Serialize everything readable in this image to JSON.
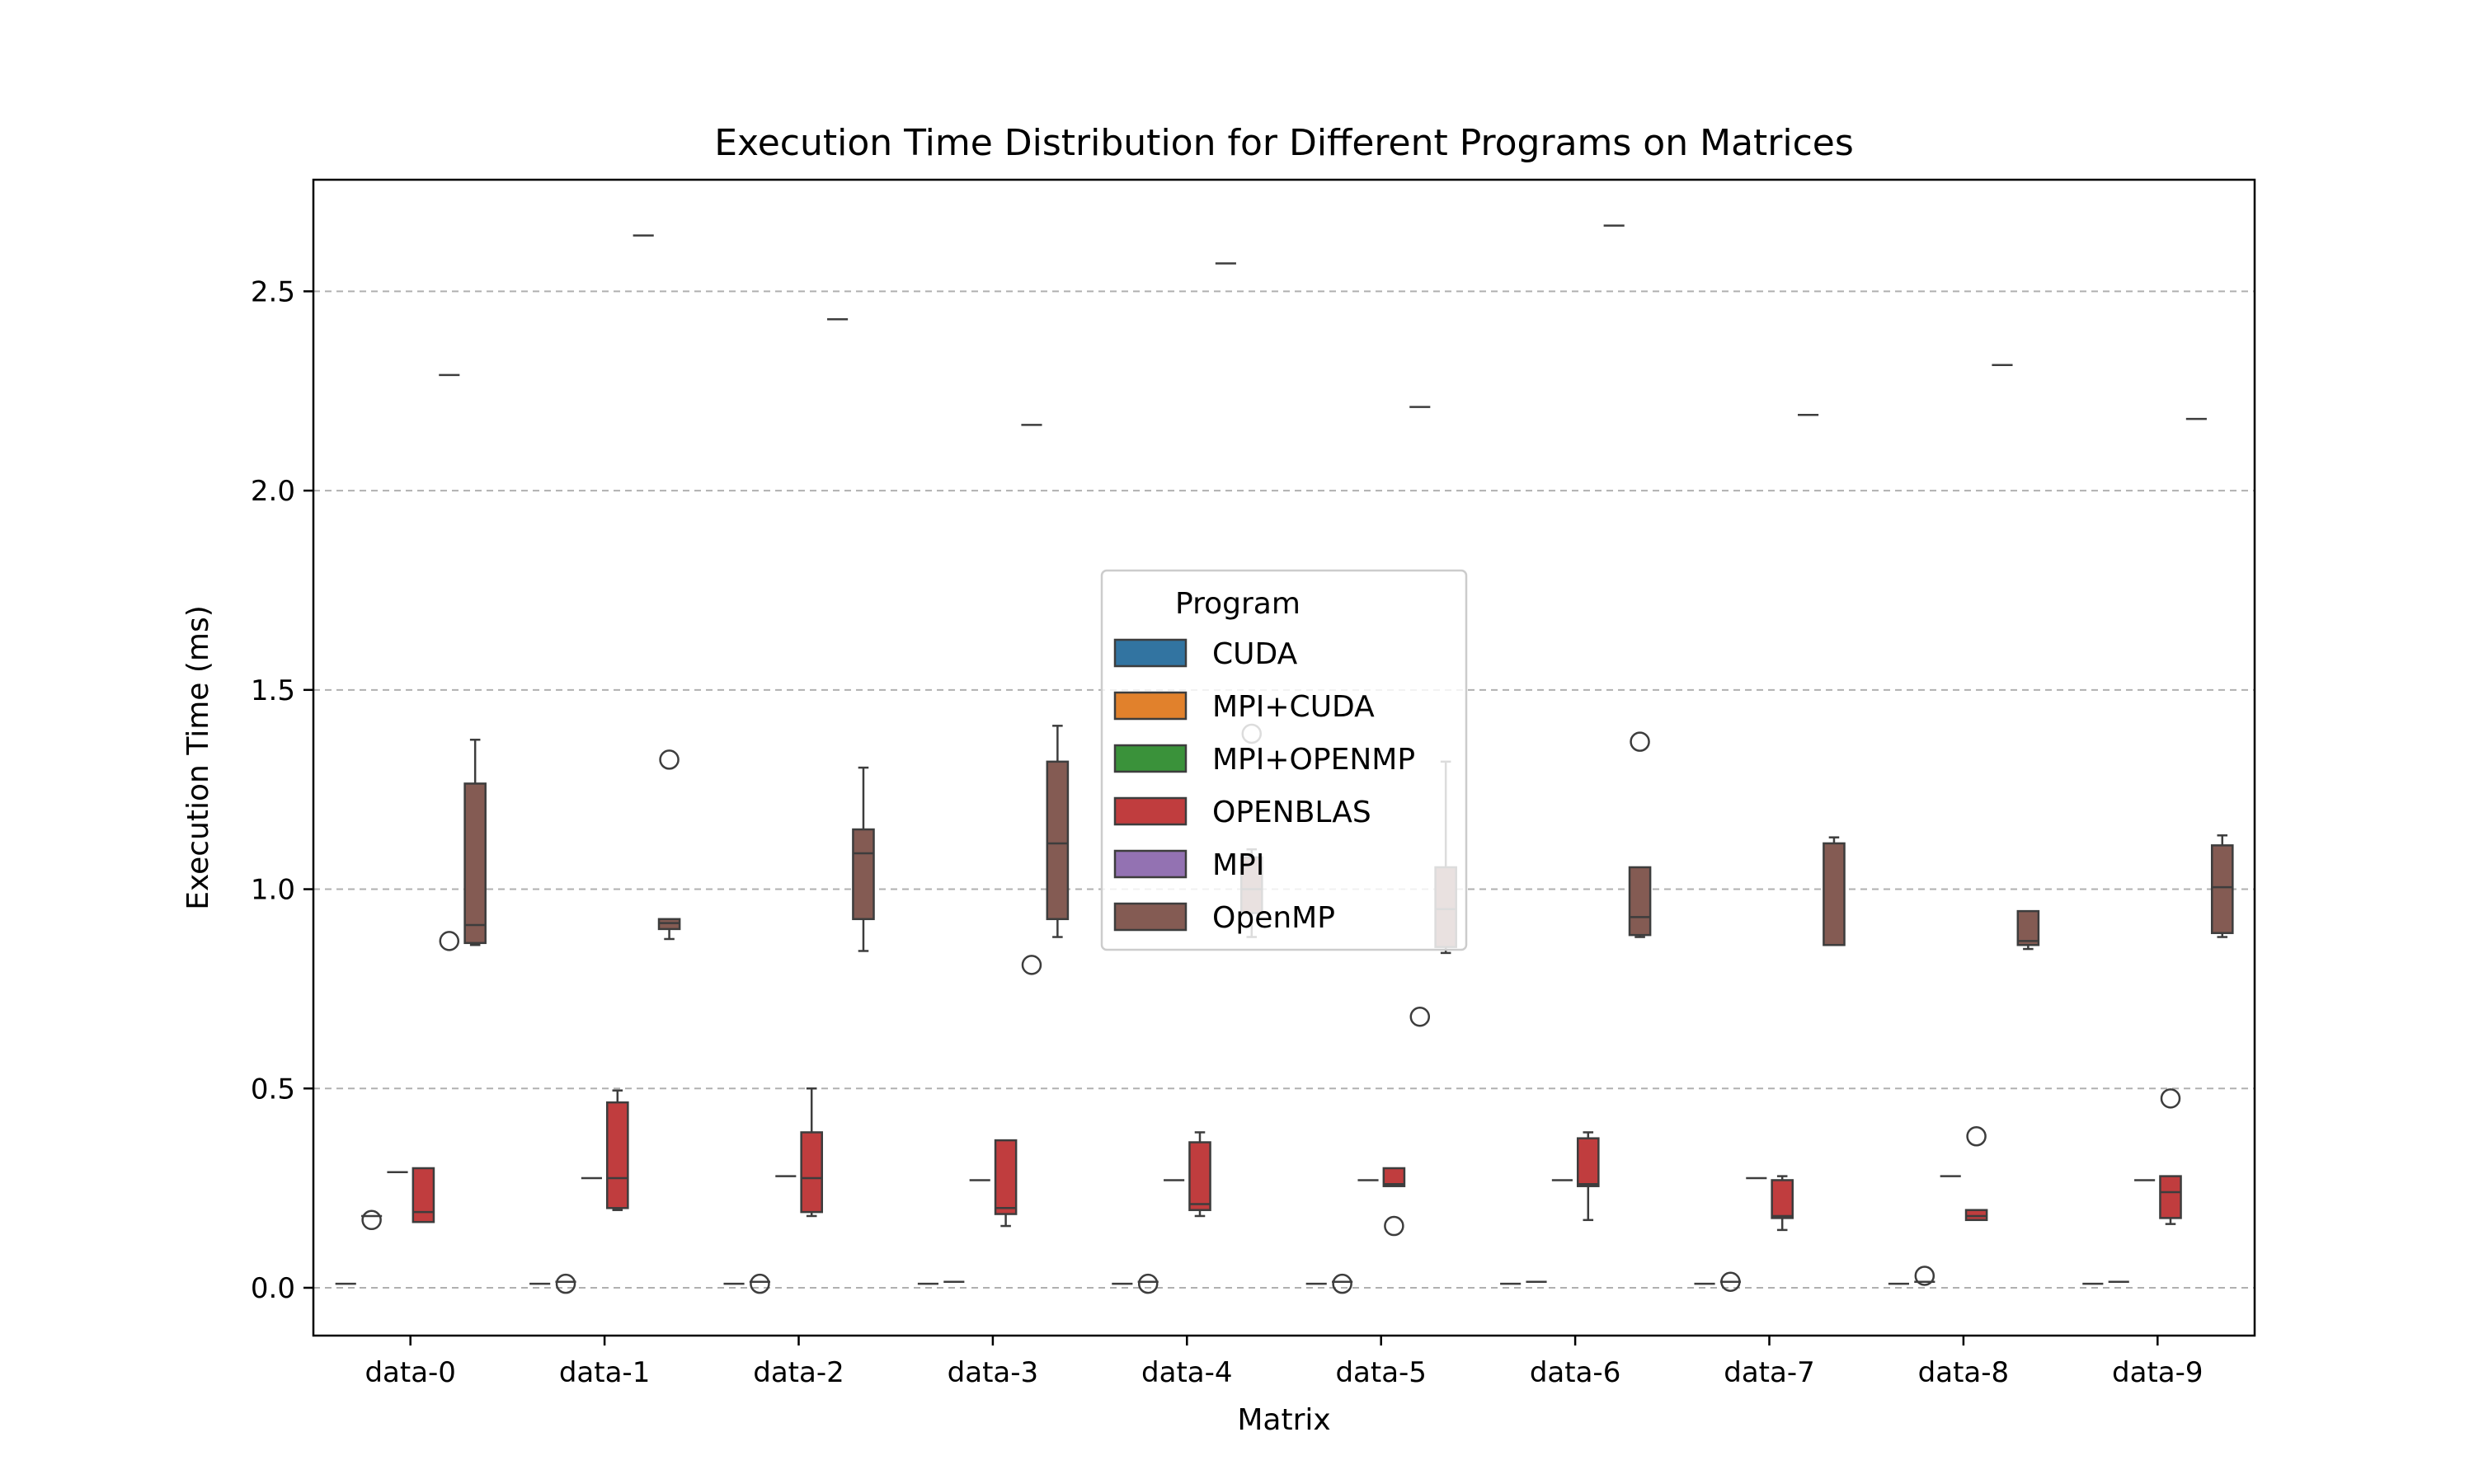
{
  "chart_data": {
    "type": "box",
    "title": "Execution Time Distribution for Different Programs on Matrices",
    "xlabel": "Matrix",
    "ylabel": "Execution Time (ms)",
    "ylim": [
      -0.12,
      2.78
    ],
    "yticks": [
      "0.0",
      "0.5",
      "1.0",
      "1.5",
      "2.0",
      "2.5"
    ],
    "grid": "y-dashed",
    "categories": [
      "data-0",
      "data-1",
      "data-2",
      "data-3",
      "data-4",
      "data-5",
      "data-6",
      "data-7",
      "data-8",
      "data-9"
    ],
    "legend": {
      "title": "Program",
      "placement": "center",
      "entries": [
        {
          "name": "CUDA",
          "color": "#3274a1"
        },
        {
          "name": "MPI+CUDA",
          "color": "#e1812c"
        },
        {
          "name": "MPI+OPENMP",
          "color": "#3a923a"
        },
        {
          "name": "OPENBLAS",
          "color": "#c03d3e"
        },
        {
          "name": "MPI",
          "color": "#9372b2"
        },
        {
          "name": "OpenMP",
          "color": "#845b53"
        }
      ]
    },
    "series": [
      {
        "name": "CUDA",
        "color": "#3274a1",
        "boxes": [
          {
            "min": 0.01,
            "q1": 0.01,
            "median": 0.01,
            "q3": 0.01,
            "max": 0.01,
            "outliers": []
          },
          {
            "min": 0.01,
            "q1": 0.01,
            "median": 0.01,
            "q3": 0.01,
            "max": 0.01,
            "outliers": []
          },
          {
            "min": 0.01,
            "q1": 0.01,
            "median": 0.01,
            "q3": 0.01,
            "max": 0.01,
            "outliers": []
          },
          {
            "min": 0.01,
            "q1": 0.01,
            "median": 0.01,
            "q3": 0.01,
            "max": 0.01,
            "outliers": []
          },
          {
            "min": 0.01,
            "q1": 0.01,
            "median": 0.01,
            "q3": 0.01,
            "max": 0.01,
            "outliers": []
          },
          {
            "min": 0.01,
            "q1": 0.01,
            "median": 0.01,
            "q3": 0.01,
            "max": 0.01,
            "outliers": []
          },
          {
            "min": 0.01,
            "q1": 0.01,
            "median": 0.01,
            "q3": 0.01,
            "max": 0.01,
            "outliers": []
          },
          {
            "min": 0.01,
            "q1": 0.01,
            "median": 0.01,
            "q3": 0.01,
            "max": 0.01,
            "outliers": []
          },
          {
            "min": 0.01,
            "q1": 0.01,
            "median": 0.01,
            "q3": 0.01,
            "max": 0.01,
            "outliers": []
          },
          {
            "min": 0.01,
            "q1": 0.01,
            "median": 0.01,
            "q3": 0.01,
            "max": 0.01,
            "outliers": []
          }
        ]
      },
      {
        "name": "MPI+CUDA",
        "color": "#e1812c",
        "boxes": [
          {
            "min": 0.18,
            "q1": 0.18,
            "median": 0.18,
            "q3": 0.18,
            "max": 0.18,
            "outliers": [
              0.17
            ]
          },
          {
            "min": 0.015,
            "q1": 0.015,
            "median": 0.015,
            "q3": 0.015,
            "max": 0.015,
            "outliers": [
              0.01
            ]
          },
          {
            "min": 0.015,
            "q1": 0.015,
            "median": 0.015,
            "q3": 0.015,
            "max": 0.015,
            "outliers": [
              0.01
            ]
          },
          {
            "min": 0.015,
            "q1": 0.015,
            "median": 0.015,
            "q3": 0.015,
            "max": 0.015,
            "outliers": []
          },
          {
            "min": 0.015,
            "q1": 0.015,
            "median": 0.015,
            "q3": 0.015,
            "max": 0.015,
            "outliers": [
              0.01
            ]
          },
          {
            "min": 0.015,
            "q1": 0.015,
            "median": 0.015,
            "q3": 0.015,
            "max": 0.015,
            "outliers": [
              0.01
            ]
          },
          {
            "min": 0.015,
            "q1": 0.015,
            "median": 0.015,
            "q3": 0.015,
            "max": 0.015,
            "outliers": []
          },
          {
            "min": 0.015,
            "q1": 0.015,
            "median": 0.015,
            "q3": 0.015,
            "max": 0.015,
            "outliers": [
              0.015
            ]
          },
          {
            "min": 0.015,
            "q1": 0.015,
            "median": 0.015,
            "q3": 0.015,
            "max": 0.015,
            "outliers": [
              0.03
            ]
          },
          {
            "min": 0.015,
            "q1": 0.015,
            "median": 0.015,
            "q3": 0.015,
            "max": 0.015,
            "outliers": []
          }
        ]
      },
      {
        "name": "MPI+OPENMP",
        "color": "#3a923a",
        "boxes": [
          {
            "min": 0.29,
            "q1": 0.29,
            "median": 0.29,
            "q3": 0.29,
            "max": 0.29,
            "outliers": []
          },
          {
            "min": 0.275,
            "q1": 0.275,
            "median": 0.275,
            "q3": 0.275,
            "max": 0.275,
            "outliers": []
          },
          {
            "min": 0.28,
            "q1": 0.28,
            "median": 0.28,
            "q3": 0.28,
            "max": 0.28,
            "outliers": []
          },
          {
            "min": 0.27,
            "q1": 0.27,
            "median": 0.27,
            "q3": 0.27,
            "max": 0.27,
            "outliers": []
          },
          {
            "min": 0.27,
            "q1": 0.27,
            "median": 0.27,
            "q3": 0.27,
            "max": 0.27,
            "outliers": []
          },
          {
            "min": 0.27,
            "q1": 0.27,
            "median": 0.27,
            "q3": 0.27,
            "max": 0.27,
            "outliers": []
          },
          {
            "min": 0.27,
            "q1": 0.27,
            "median": 0.27,
            "q3": 0.27,
            "max": 0.27,
            "outliers": []
          },
          {
            "min": 0.275,
            "q1": 0.275,
            "median": 0.275,
            "q3": 0.275,
            "max": 0.275,
            "outliers": []
          },
          {
            "min": 0.28,
            "q1": 0.28,
            "median": 0.28,
            "q3": 0.28,
            "max": 0.28,
            "outliers": []
          },
          {
            "min": 0.27,
            "q1": 0.27,
            "median": 0.27,
            "q3": 0.27,
            "max": 0.27,
            "outliers": []
          }
        ]
      },
      {
        "name": "OPENBLAS",
        "color": "#c03d3e",
        "boxes": [
          {
            "min": 0.165,
            "q1": 0.165,
            "median": 0.19,
            "q3": 0.3,
            "max": 0.3,
            "outliers": []
          },
          {
            "min": 0.195,
            "q1": 0.2,
            "median": 0.275,
            "q3": 0.465,
            "max": 0.495,
            "outliers": []
          },
          {
            "min": 0.18,
            "q1": 0.19,
            "median": 0.275,
            "q3": 0.39,
            "max": 0.5,
            "outliers": []
          },
          {
            "min": 0.155,
            "q1": 0.185,
            "median": 0.2,
            "q3": 0.37,
            "max": 0.37,
            "outliers": []
          },
          {
            "min": 0.18,
            "q1": 0.195,
            "median": 0.21,
            "q3": 0.365,
            "max": 0.39,
            "outliers": []
          },
          {
            "min": 0.255,
            "q1": 0.255,
            "median": 0.26,
            "q3": 0.3,
            "max": 0.3,
            "outliers": [
              0.155
            ]
          },
          {
            "min": 0.17,
            "q1": 0.255,
            "median": 0.26,
            "q3": 0.375,
            "max": 0.39,
            "outliers": []
          },
          {
            "min": 0.145,
            "q1": 0.175,
            "median": 0.18,
            "q3": 0.27,
            "max": 0.28,
            "outliers": []
          },
          {
            "min": 0.17,
            "q1": 0.17,
            "median": 0.18,
            "q3": 0.195,
            "max": 0.195,
            "outliers": [
              0.38
            ]
          },
          {
            "min": 0.16,
            "q1": 0.175,
            "median": 0.24,
            "q3": 0.28,
            "max": 0.28,
            "outliers": [
              0.475
            ]
          }
        ]
      },
      {
        "name": "MPI",
        "color": "#9372b2",
        "boxes": [
          {
            "min": 2.29,
            "q1": 2.29,
            "median": 2.29,
            "q3": 2.29,
            "max": 2.29,
            "outliers": [
              0.87
            ]
          },
          {
            "min": 2.64,
            "q1": 2.64,
            "median": 2.64,
            "q3": 2.64,
            "max": 2.64,
            "outliers": []
          },
          {
            "min": 2.43,
            "q1": 2.43,
            "median": 2.43,
            "q3": 2.43,
            "max": 2.43,
            "outliers": []
          },
          {
            "min": 2.165,
            "q1": 2.165,
            "median": 2.165,
            "q3": 2.165,
            "max": 2.165,
            "outliers": [
              0.81
            ]
          },
          {
            "min": 2.57,
            "q1": 2.57,
            "median": 2.57,
            "q3": 2.57,
            "max": 2.57,
            "outliers": []
          },
          {
            "min": 2.21,
            "q1": 2.21,
            "median": 2.21,
            "q3": 2.21,
            "max": 2.21,
            "outliers": [
              0.68
            ]
          },
          {
            "min": 2.665,
            "q1": 2.665,
            "median": 2.665,
            "q3": 2.665,
            "max": 2.665,
            "outliers": []
          },
          {
            "min": 2.19,
            "q1": 2.19,
            "median": 2.19,
            "q3": 2.19,
            "max": 2.19,
            "outliers": []
          },
          {
            "min": 2.315,
            "q1": 2.315,
            "median": 2.315,
            "q3": 2.315,
            "max": 2.315,
            "outliers": []
          },
          {
            "min": 2.18,
            "q1": 2.18,
            "median": 2.18,
            "q3": 2.18,
            "max": 2.18,
            "outliers": []
          }
        ]
      },
      {
        "name": "OpenMP",
        "color": "#845b53",
        "boxes": [
          {
            "min": 0.86,
            "q1": 0.865,
            "median": 0.91,
            "q3": 1.265,
            "max": 1.375,
            "outliers": []
          },
          {
            "min": 0.875,
            "q1": 0.9,
            "median": 0.915,
            "q3": 0.925,
            "max": 0.925,
            "outliers": [
              1.325
            ]
          },
          {
            "min": 0.845,
            "q1": 0.925,
            "median": 1.09,
            "q3": 1.15,
            "max": 1.305,
            "outliers": []
          },
          {
            "min": 0.88,
            "q1": 0.925,
            "median": 1.115,
            "q3": 1.32,
            "max": 1.41,
            "outliers": []
          },
          {
            "min": 0.88,
            "q1": 0.94,
            "median": 1.0,
            "q3": 1.08,
            "max": 1.1,
            "outliers": [
              1.39
            ]
          },
          {
            "min": 0.84,
            "q1": 0.855,
            "median": 0.95,
            "q3": 1.055,
            "max": 1.32,
            "outliers": []
          },
          {
            "min": 0.88,
            "q1": 0.885,
            "median": 0.93,
            "q3": 1.055,
            "max": 1.055,
            "outliers": [
              1.37
            ]
          },
          {
            "min": 0.86,
            "q1": 0.86,
            "median": 0.86,
            "q3": 1.115,
            "max": 1.13,
            "outliers": []
          },
          {
            "min": 0.85,
            "q1": 0.86,
            "median": 0.87,
            "q3": 0.945,
            "max": 0.945,
            "outliers": []
          },
          {
            "min": 0.88,
            "q1": 0.89,
            "median": 1.005,
            "q3": 1.11,
            "max": 1.135,
            "outliers": []
          }
        ]
      }
    ]
  }
}
